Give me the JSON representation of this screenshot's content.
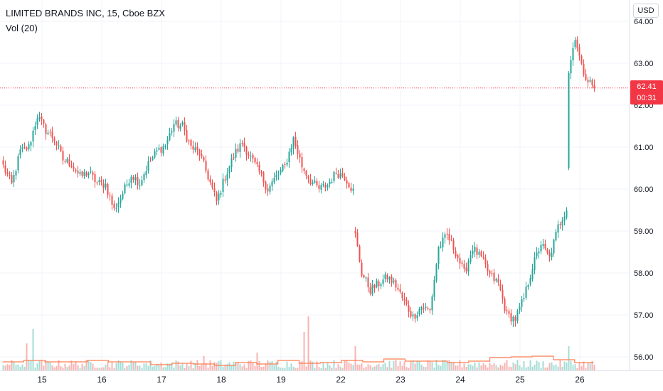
{
  "header": {
    "symbol_line": "LIMITED BRANDS INC, 15, Cboe BZX",
    "indicator": "Vol (20)"
  },
  "price_axis": {
    "currency": "USD",
    "last_price": "62.41",
    "countdown": "00:31",
    "tick_labels": [
      "64.00",
      "63.00",
      "62.00",
      "61.00",
      "60.00",
      "59.00",
      "58.00",
      "57.00",
      "56.00"
    ]
  },
  "time_axis": {
    "tick_labels": [
      "15",
      "16",
      "17",
      "18",
      "19",
      "22",
      "23",
      "24",
      "25",
      "26"
    ]
  },
  "colors": {
    "up": "#26a69a",
    "down": "#ef5350",
    "volume_up": "#a5dcd6",
    "volume_down": "#f7b3b2",
    "volume_ma": "#ff7f50",
    "last_price": "#f23645",
    "grid": "#f0f3fa"
  },
  "chart_data": {
    "type": "candlestick",
    "title": "LIMITED BRANDS INC, 15, Cboe BZX",
    "ylim": [
      55.83,
      64.35
    ],
    "y_ticks": [
      64,
      63,
      62,
      61,
      60,
      59,
      58,
      57,
      56
    ],
    "x_ticks": [
      "15",
      "16",
      "17",
      "18",
      "19",
      "22",
      "23",
      "24",
      "25",
      "26"
    ],
    "last_price": 62.41,
    "grid": true,
    "volume_ma_period": 20,
    "close_anchors": [
      [
        0,
        60.55
      ],
      [
        4,
        60.1
      ],
      [
        8,
        60.9
      ],
      [
        12,
        61.0
      ],
      [
        16,
        61.75
      ],
      [
        20,
        61.4
      ],
      [
        24,
        61.2
      ],
      [
        28,
        60.7
      ],
      [
        32,
        60.6
      ],
      [
        36,
        60.3
      ],
      [
        40,
        60.4
      ],
      [
        44,
        60.15
      ],
      [
        48,
        60.1
      ],
      [
        52,
        59.5
      ],
      [
        56,
        59.9
      ],
      [
        60,
        60.35
      ],
      [
        64,
        60.15
      ],
      [
        68,
        60.6
      ],
      [
        72,
        60.9
      ],
      [
        76,
        61.05
      ],
      [
        80,
        61.55
      ],
      [
        84,
        61.5
      ],
      [
        88,
        61.0
      ],
      [
        92,
        60.85
      ],
      [
        96,
        60.3
      ],
      [
        100,
        59.7
      ],
      [
        104,
        60.3
      ],
      [
        108,
        60.8
      ],
      [
        112,
        61.1
      ],
      [
        116,
        60.75
      ],
      [
        120,
        60.4
      ],
      [
        124,
        60.0
      ],
      [
        128,
        60.3
      ],
      [
        132,
        60.55
      ],
      [
        136,
        61.2
      ],
      [
        140,
        60.55
      ],
      [
        144,
        60.2
      ],
      [
        148,
        60.0
      ],
      [
        152,
        60.1
      ],
      [
        156,
        60.4
      ],
      [
        160,
        60.3
      ],
      [
        164,
        59.95
      ],
      [
        165,
        58.9
      ],
      [
        168,
        58.0
      ],
      [
        172,
        57.6
      ],
      [
        176,
        57.75
      ],
      [
        180,
        57.9
      ],
      [
        184,
        57.7
      ],
      [
        188,
        57.3
      ],
      [
        192,
        56.95
      ],
      [
        196,
        57.2
      ],
      [
        200,
        57.1
      ],
      [
        204,
        58.6
      ],
      [
        208,
        58.9
      ],
      [
        212,
        58.5
      ],
      [
        216,
        58.0
      ],
      [
        220,
        58.6
      ],
      [
        224,
        58.35
      ],
      [
        228,
        57.95
      ],
      [
        232,
        57.75
      ],
      [
        236,
        57.0
      ],
      [
        240,
        56.9
      ],
      [
        244,
        57.4
      ],
      [
        248,
        58.15
      ],
      [
        252,
        58.7
      ],
      [
        256,
        58.35
      ],
      [
        260,
        59.1
      ],
      [
        264,
        59.55
      ],
      [
        265,
        62.8
      ],
      [
        268,
        63.65
      ],
      [
        271,
        62.9
      ],
      [
        274,
        62.6
      ],
      [
        277,
        62.41
      ]
    ],
    "volume_scale_max": 100,
    "volume_ma_values": [
      15,
      16,
      12,
      10,
      13,
      14,
      14,
      12,
      11,
      13,
      11,
      10,
      12,
      13,
      14,
      13,
      12,
      10,
      10,
      9,
      10,
      11,
      13,
      10,
      9,
      10,
      11,
      10
    ],
    "volume_ma_steps": [
      12,
      14,
      12,
      12,
      14,
      12,
      12,
      8,
      10,
      9,
      7,
      11,
      9,
      14,
      10,
      11,
      14,
      12,
      16,
      13,
      13,
      11,
      13,
      18,
      19,
      20,
      15,
      11
    ],
    "volume_spikes": [
      {
        "bar": 14,
        "value": 58
      },
      {
        "bar": 11,
        "value": 38
      },
      {
        "bar": 143,
        "value": 76
      },
      {
        "bar": 141,
        "value": 54
      },
      {
        "bar": 119,
        "value": 25
      },
      {
        "bar": 165,
        "value": 34
      },
      {
        "bar": 265,
        "value": 34
      },
      {
        "bar": 94,
        "value": 20
      }
    ]
  }
}
